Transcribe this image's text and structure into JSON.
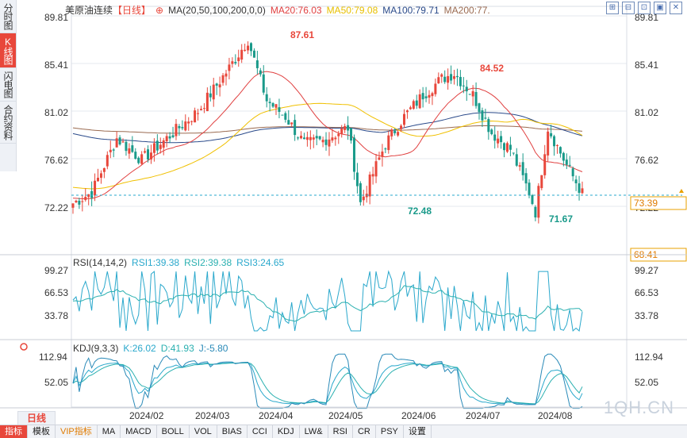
{
  "left_tabs": [
    "分时图",
    "K线图",
    "闪电图",
    "合约资料"
  ],
  "active_left_tab": 1,
  "legend": {
    "symbol": "美原油连续",
    "period": "【日线】",
    "ma_label": "MA(20,50,100,200,0,0)",
    "ma20": "MA20:76.03",
    "ma50": "MA50:79.08",
    "ma100": "MA100:79.71",
    "ma200": "MA200:77."
  },
  "window_buttons": [
    "⊞",
    "⊟",
    "⊡",
    "▣",
    "✕"
  ],
  "colors": {
    "up": "#e8473b",
    "down": "#1a9a8a",
    "ma20": "#e04040",
    "ma50": "#f0c000",
    "ma100": "#2a4a8a",
    "ma200": "#9a6a50",
    "rsi": "#2aa8cc",
    "rsi_slow": "#2ab0b0",
    "price_line": "#2aa8cc",
    "grid": "#e6e9ef"
  },
  "price_axis": {
    "ticks": [
      "89.81",
      "85.41",
      "81.02",
      "76.62",
      "72.22"
    ],
    "extra_label": "68.41",
    "current_price": "73.39"
  },
  "annotations": {
    "high1": "87.61",
    "high2": "84.52",
    "low1": "72.48",
    "low2": "71.67"
  },
  "rsi": {
    "title": "RSI(14,14,2)",
    "rsi1": "RSI1:39.38",
    "rsi2": "RSI2:39.38",
    "rsi3": "RSI3:24.65",
    "ticks": [
      "99.27",
      "66.53",
      "33.78"
    ]
  },
  "kdj": {
    "title": "KDJ(9,3,3)",
    "k": "K:26.02",
    "d": "D:41.93",
    "j": "J:-5.80",
    "ticks": [
      "112.94",
      "52.05"
    ]
  },
  "date_labels": [
    "2024/02",
    "2024/03",
    "2024/04",
    "2024/05",
    "2024/06",
    "2024/07",
    "2024/08"
  ],
  "period_tab": "日线",
  "bottom_tabs": [
    "指标",
    "模板",
    "VIP指标",
    "MA",
    "MACD",
    "BOLL",
    "VOL",
    "BIAS",
    "CCI",
    "KDJ",
    "LW&",
    "RSI",
    "CR",
    "PSY",
    "设置"
  ],
  "watermark": "1QH.CN",
  "chart_data": {
    "type": "candlestick",
    "title": "美原油连续【日线】",
    "ylim": [
      68.41,
      91.5
    ],
    "anchors": [
      [
        0,
        72.5
      ],
      [
        6,
        73.5
      ],
      [
        14,
        78.5
      ],
      [
        22,
        76.5
      ],
      [
        30,
        78.5
      ],
      [
        40,
        81.0
      ],
      [
        50,
        85.0
      ],
      [
        56,
        87.6
      ],
      [
        62,
        82.0
      ],
      [
        68,
        80.5
      ],
      [
        74,
        78.0
      ],
      [
        80,
        78.3
      ],
      [
        88,
        79.5
      ],
      [
        92,
        72.5
      ],
      [
        100,
        78.0
      ],
      [
        106,
        80.5
      ],
      [
        112,
        82.5
      ],
      [
        118,
        84.0
      ],
      [
        122,
        84.5
      ],
      [
        128,
        82.5
      ],
      [
        134,
        79.0
      ],
      [
        140,
        77.5
      ],
      [
        146,
        73.5
      ],
      [
        148,
        71.7
      ],
      [
        152,
        79.5
      ],
      [
        158,
        76.0
      ],
      [
        163,
        73.4
      ]
    ],
    "ma20_endpoint": 76.03,
    "ma50_endpoint": 79.08,
    "ma100_endpoint": 79.71,
    "ma200_endpoint": 77.9,
    "rsi_last": [
      39.38,
      39.38,
      24.65
    ],
    "kdj_last": [
      26.02,
      41.93,
      -5.8
    ]
  }
}
